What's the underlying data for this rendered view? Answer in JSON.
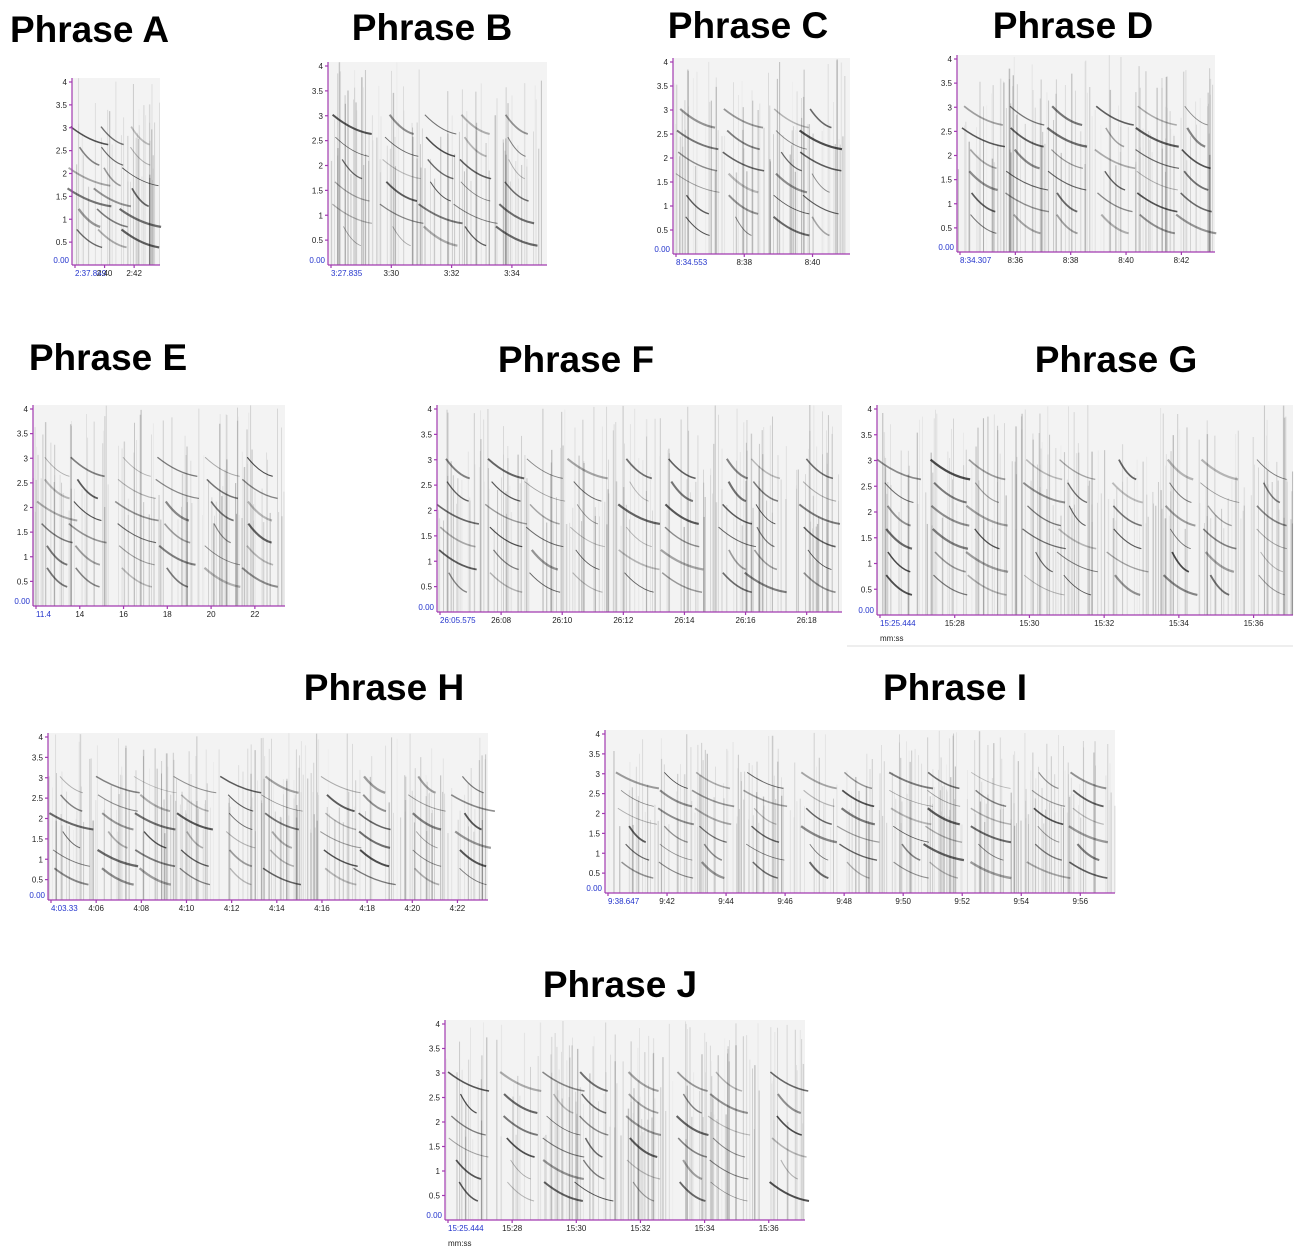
{
  "frequency_ticks": [
    "0.5",
    "1",
    "1.5",
    "2",
    "2.5",
    "3",
    "3.5",
    "4"
  ],
  "origin_label": "0.00",
  "panels": [
    {
      "title": "Phrase A",
      "time_labels": [
        "2:37.849",
        "2:40",
        "2:42"
      ]
    },
    {
      "title": "Phrase B",
      "time_labels": [
        "3:27.835",
        "3:30",
        "3:32",
        "3:34"
      ]
    },
    {
      "title": "Phrase C",
      "time_labels": [
        "8:34.553",
        "8:38",
        "8:40"
      ]
    },
    {
      "title": "Phrase D",
      "time_labels": [
        "8:34.307",
        "8:36",
        "8:38",
        "8:40",
        "8:42"
      ]
    },
    {
      "title": "Phrase E",
      "time_labels": [
        "11.4",
        "14",
        "16",
        "18",
        "20",
        "22"
      ]
    },
    {
      "title": "Phrase F",
      "time_labels": [
        "26:05.575",
        "26:08",
        "26:10",
        "26:12",
        "26:14",
        "26:16",
        "26:18"
      ]
    },
    {
      "title": "Phrase G",
      "time_labels": [
        "15:25.444",
        "15:28",
        "15:30",
        "15:32",
        "15:34",
        "15:36"
      ],
      "unit": "mm:ss"
    },
    {
      "title": "Phrase H",
      "time_labels": [
        "4:03.33",
        "4:06",
        "4:08",
        "4:10",
        "4:12",
        "4:14",
        "4:16",
        "4:18",
        "4:20",
        "4:22"
      ]
    },
    {
      "title": "Phrase I",
      "time_labels": [
        "9:38.647",
        "9:42",
        "9:44",
        "9:46",
        "9:48",
        "9:50",
        "9:52",
        "9:54",
        "9:56"
      ]
    },
    {
      "title": "Phrase J",
      "time_labels": [
        "15:25.444",
        "15:28",
        "15:30",
        "15:32",
        "15:34",
        "15:36"
      ],
      "unit": "mm:ss"
    }
  ]
}
